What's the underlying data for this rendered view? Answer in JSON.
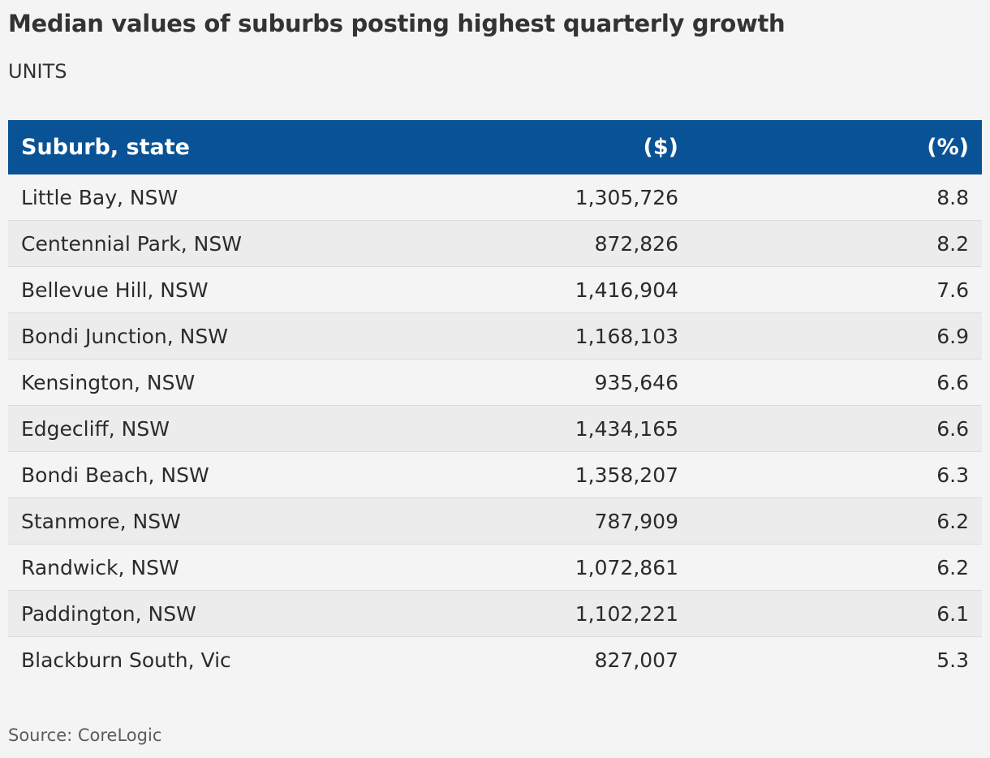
{
  "title": "Median values of suburbs posting highest quarterly growth",
  "subtitle": "UNITS",
  "source": "Source: CoreLogic",
  "colors": {
    "header_bg": "#0a5296",
    "header_text": "#ffffff",
    "row_alt_bg": "#ececec",
    "page_bg": "#f4f4f4"
  },
  "chart_data": {
    "type": "table",
    "title": "Median values of suburbs posting highest quarterly growth",
    "subtitle": "UNITS",
    "columns": [
      "Suburb, state",
      "($)",
      "(%)"
    ],
    "rows": [
      [
        "Little Bay, NSW",
        "1,305,726",
        "8.8"
      ],
      [
        "Centennial Park, NSW",
        "872,826",
        "8.2"
      ],
      [
        "Bellevue Hill, NSW",
        "1,416,904",
        "7.6"
      ],
      [
        "Bondi Junction, NSW",
        "1,168,103",
        "6.9"
      ],
      [
        "Kensington, NSW",
        "935,646",
        "6.6"
      ],
      [
        "Edgecliff, NSW",
        "1,434,165",
        "6.6"
      ],
      [
        "Bondi Beach, NSW",
        "1,358,207",
        "6.3"
      ],
      [
        "Stanmore, NSW",
        "787,909",
        "6.2"
      ],
      [
        "Randwick, NSW",
        "1,072,861",
        "6.2"
      ],
      [
        "Paddington, NSW",
        "1,102,221",
        "6.1"
      ],
      [
        "Blackburn South, Vic",
        "827,007",
        "5.3"
      ]
    ],
    "source": "Source: CoreLogic"
  }
}
